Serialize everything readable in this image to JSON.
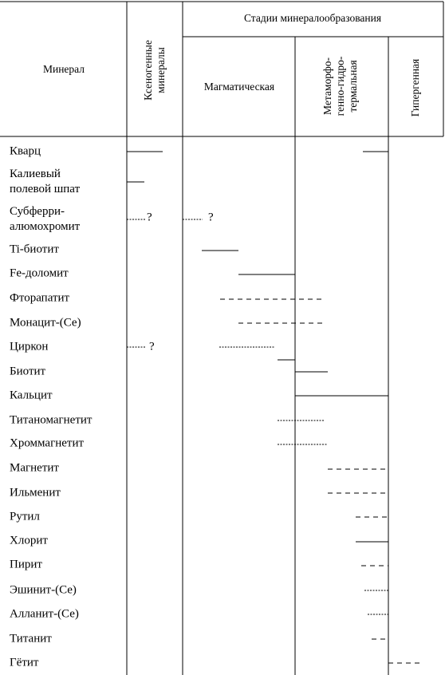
{
  "header": {
    "mineral": "Минерал",
    "xenogenic": [
      "Ксеногенные",
      "минералы"
    ],
    "stages": "Стадии минералообразования",
    "magmatic": "Магматическая",
    "metamorphic": [
      "Метаморфо-",
      "генно-гидро-",
      "термальная"
    ],
    "hypergenic": "Гипергенная"
  },
  "rows": [
    {
      "name": [
        "Кварц"
      ]
    },
    {
      "name": [
        "Калиевый",
        "полевой шпат"
      ]
    },
    {
      "name": [
        "Субферри-",
        "алюмохромит"
      ],
      "notes": [
        "?",
        "?"
      ]
    },
    {
      "name": [
        "Ti-биотит"
      ]
    },
    {
      "name": [
        "Fe-доломит"
      ]
    },
    {
      "name": [
        "Фторапатит"
      ]
    },
    {
      "name": [
        "Монацит-(Се)"
      ]
    },
    {
      "name": [
        "Циркон"
      ],
      "notes": [
        "?"
      ]
    },
    {
      "name": [
        "Биотит"
      ]
    },
    {
      "name": [
        "Кальцит"
      ]
    },
    {
      "name": [
        "Титаномагнетит"
      ]
    },
    {
      "name": [
        "Хроммагнетит"
      ]
    },
    {
      "name": [
        "Магнетит"
      ]
    },
    {
      "name": [
        "Ильменит"
      ]
    },
    {
      "name": [
        "Рутил"
      ]
    },
    {
      "name": [
        "Хлорит"
      ]
    },
    {
      "name": [
        "Пирит"
      ]
    },
    {
      "name": [
        "Эшинит-(Се)"
      ]
    },
    {
      "name": [
        "Алланит-(Се)"
      ]
    },
    {
      "name": [
        "Титанит"
      ]
    },
    {
      "name": [
        "Гётит"
      ]
    }
  ]
}
